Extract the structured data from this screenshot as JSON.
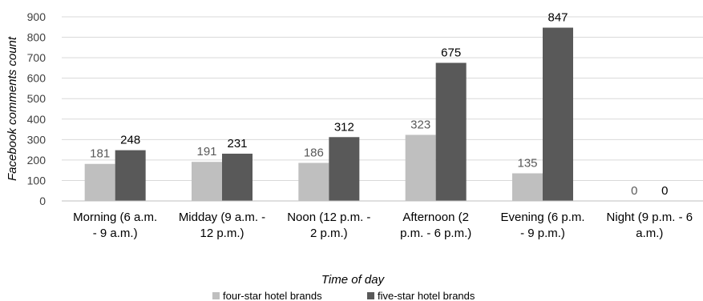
{
  "chart_data": {
    "type": "bar",
    "categories": [
      [
        "Morning (6 a.m.",
        "- 9 a.m.)"
      ],
      [
        "Midday (9 a.m. -",
        "12 p.m.)"
      ],
      [
        "Noon (12 p.m. -",
        "2 p.m.)"
      ],
      [
        "Afternoon (2",
        "p.m. - 6 p.m.)"
      ],
      [
        "Evening (6 p.m.",
        "- 9 p.m.)"
      ],
      [
        "Night (9 p.m. - 6",
        "a.m.)"
      ]
    ],
    "series": [
      {
        "name": "four-star hotel brands",
        "values": [
          181,
          191,
          186,
          323,
          135,
          0
        ],
        "color": "#bfbfbf",
        "label_color": "#595959"
      },
      {
        "name": "five-star hotel brands",
        "values": [
          248,
          231,
          312,
          675,
          847,
          0
        ],
        "color": "#595959",
        "label_color": "#000000"
      }
    ],
    "xlabel": "Time of day",
    "ylabel": "Facebook comments count",
    "ylim": [
      0,
      900
    ],
    "yticks": [
      "0",
      "100",
      "200",
      "300",
      "400",
      "500",
      "600",
      "700",
      "800",
      "900"
    ],
    "grid": true,
    "legend_position": "bottom"
  }
}
